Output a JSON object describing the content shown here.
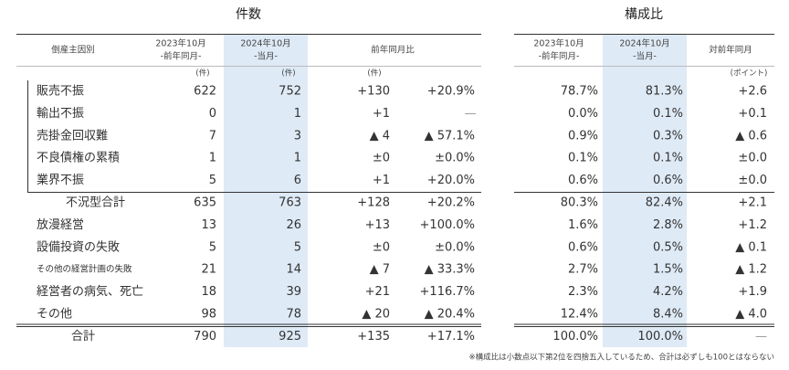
{
  "sections": [
    "件数",
    "構成比"
  ],
  "left_header": {
    "cause": "倒産主因別",
    "prev": [
      "2023年10月",
      "-前年同月-"
    ],
    "curr": [
      "2024年10月",
      "-当月-"
    ],
    "yoy": "前年同月比"
  },
  "right_header": {
    "prev": [
      "2023年10月",
      "-前年同月-"
    ],
    "curr": [
      "2024年10月",
      "-当月-"
    ],
    "yoy": "対前年同月"
  },
  "units": [
    "(件)",
    "(件)",
    "(件)",
    "(ポイント)"
  ],
  "rows": [
    [
      "販売不振",
      "622",
      "752",
      "+130",
      "+20.9%",
      "78.7%",
      "81.3%",
      "+2.6"
    ],
    [
      "輸出不振",
      "0",
      "1",
      "+1",
      "—",
      "0.0%",
      "0.1%",
      "+0.1"
    ],
    [
      "売掛金回収難",
      "7",
      "3",
      "▲ 4",
      "▲ 57.1%",
      "0.9%",
      "0.3%",
      "▲ 0.6"
    ],
    [
      "不良債権の累積",
      "1",
      "1",
      "±0",
      "±0.0%",
      "0.1%",
      "0.1%",
      "±0.0"
    ],
    [
      "業界不振",
      "5",
      "6",
      "+1",
      "+20.0%",
      "0.6%",
      "0.6%",
      "±0.0"
    ],
    [
      "不況型合計",
      "635",
      "763",
      "+128",
      "+20.2%",
      "80.3%",
      "82.4%",
      "+2.1"
    ],
    [
      "放漫経営",
      "13",
      "26",
      "+13",
      "+100.0%",
      "1.6%",
      "2.8%",
      "+1.2"
    ],
    [
      "設備投資の失敗",
      "5",
      "5",
      "±0",
      "±0.0%",
      "0.6%",
      "0.5%",
      "▲ 0.1"
    ],
    [
      "その他の経営計画の失敗",
      "21",
      "14",
      "▲ 7",
      "▲ 33.3%",
      "2.7%",
      "1.5%",
      "▲ 1.2"
    ],
    [
      "経営者の病気、死亡",
      "18",
      "39",
      "+21",
      "+116.7%",
      "2.3%",
      "4.2%",
      "+1.9"
    ],
    [
      "その他",
      "98",
      "78",
      "▲ 20",
      "▲ 20.4%",
      "12.4%",
      "8.4%",
      "▲ 4.0"
    ],
    [
      "合計",
      "790",
      "925",
      "+135",
      "+17.1%",
      "100.0%",
      "100.0%",
      "—"
    ]
  ],
  "note": "※構成比は小数点以下第2位を四捨五入しているため、合計は必ずしも100とはならない"
}
